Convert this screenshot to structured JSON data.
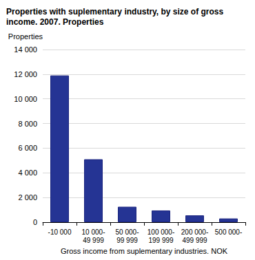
{
  "chart_data": {
    "type": "bar",
    "title": "Properties with suplementary industry, by size of gross income. 2007. Properties",
    "y_label": "Properties",
    "x_label": "Gross income from suplementary industries. NOK",
    "categories": [
      "-10 000",
      "10 000-49 999",
      "50 000-99 999",
      "100 000-199 999",
      "200 000-499 999",
      "500 000-"
    ],
    "values": [
      11900,
      5100,
      1250,
      950,
      550,
      300
    ],
    "color": "#253494",
    "ylim": [
      0,
      14000
    ],
    "yticks": [
      0,
      {
        "value": 2000,
        "label": "2 000"
      },
      {
        "value": 4000,
        "label": "4 000"
      },
      {
        "value": 6000,
        "label": "6 000"
      },
      {
        "value": 8000,
        "label": "8 000"
      },
      {
        "value": 10000,
        "label": "10 000"
      },
      {
        "value": 12000,
        "label": "12 000"
      },
      {
        "value": 14000,
        "label": "14 000"
      }
    ],
    "grid": true
  }
}
